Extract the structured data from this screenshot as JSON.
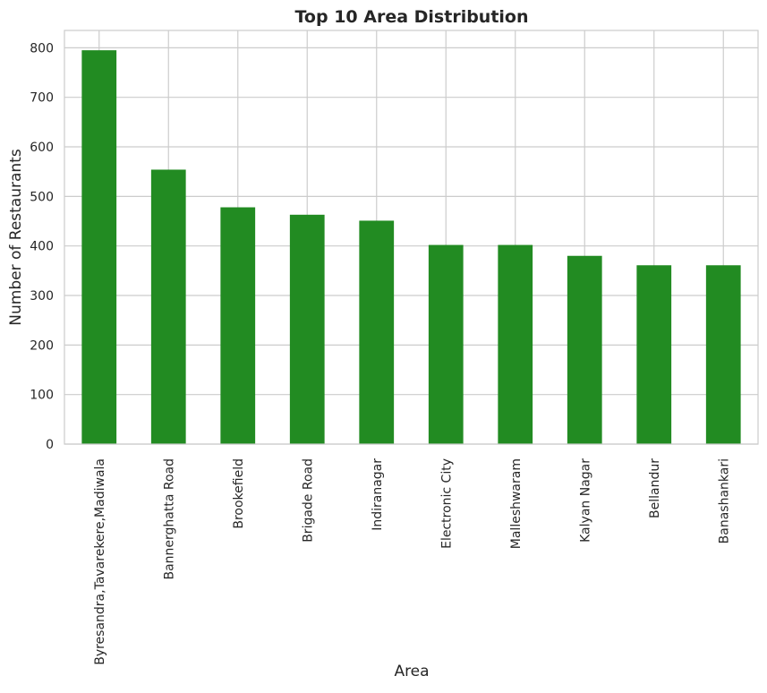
{
  "chart_data": {
    "type": "bar",
    "title": "Top 10 Area Distribution",
    "xlabel": "Area",
    "ylabel": "Number of Restaurants",
    "categories": [
      "Byresandra,Tavarekere,Madiwala",
      "Bannerghatta Road",
      "Brookefield",
      "Brigade Road",
      "Indiranagar",
      "Electronic City",
      "Malleshwaram",
      "Kalyan Nagar",
      "Bellandur",
      "Banashankari"
    ],
    "values": [
      795,
      554,
      478,
      463,
      451,
      402,
      402,
      380,
      361,
      361
    ],
    "ylim": [
      0,
      835
    ],
    "yticks": [
      0,
      100,
      200,
      300,
      400,
      500,
      600,
      700,
      800
    ],
    "grid": true,
    "legend": "none",
    "colors": {
      "bar": "#228b22",
      "grid": "#cccccc",
      "axes_border": "#cccccc",
      "background": "#ffffff",
      "text": "#262626"
    }
  }
}
